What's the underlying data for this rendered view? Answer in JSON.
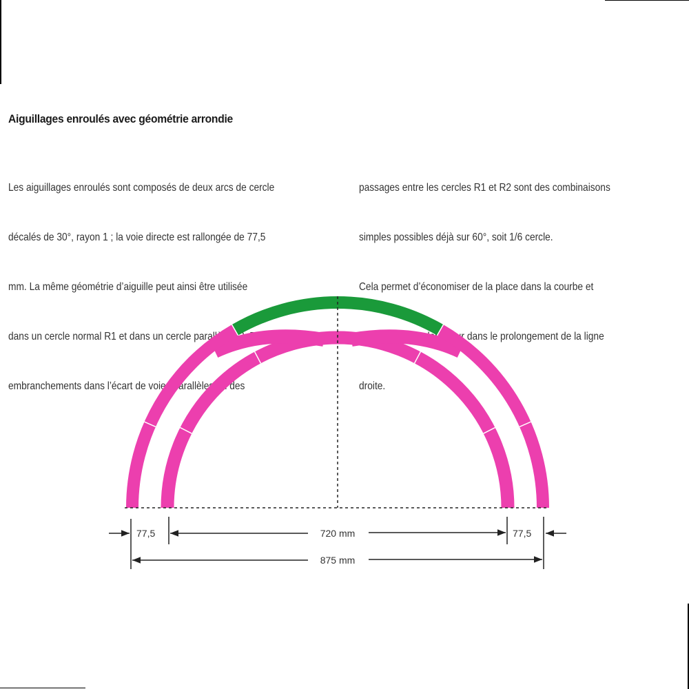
{
  "title": "Aiguillages enroulés avec géométrie arrondie",
  "column1": [
    "Les aiguillages enroulés sont composés de deux arcs de cercle",
    "décalés de 30°, rayon 1 ; la voie directe est rallongée de 77,5",
    "mm. La même géométrie d’aiguille peut ainsi être utilisée",
    "dans un cercle normal R1 et dans un cercle parallèle R2. Des",
    "embranchements dans l’écart de voies parallèles ou des"
  ],
  "column2": [
    "passages entre les cercles R1 et R2 sont des combinaisons",
    "simples possibles déjà sur 60°, soit 1/6 cercle.",
    "Cela permet d’économiser de la place dans la courbe et",
    "de gagner de la longueur dans le prolongement de la ligne",
    "droite."
  ],
  "diagram": {
    "colors": {
      "track": "#ec3fae",
      "switch_highlight": "#1a9a3a",
      "lines": "#222222"
    },
    "dimensions": {
      "left_offset": "77,5",
      "inner_width": "720 mm",
      "right_offset": "77,5",
      "outer_width": "875 mm"
    }
  }
}
